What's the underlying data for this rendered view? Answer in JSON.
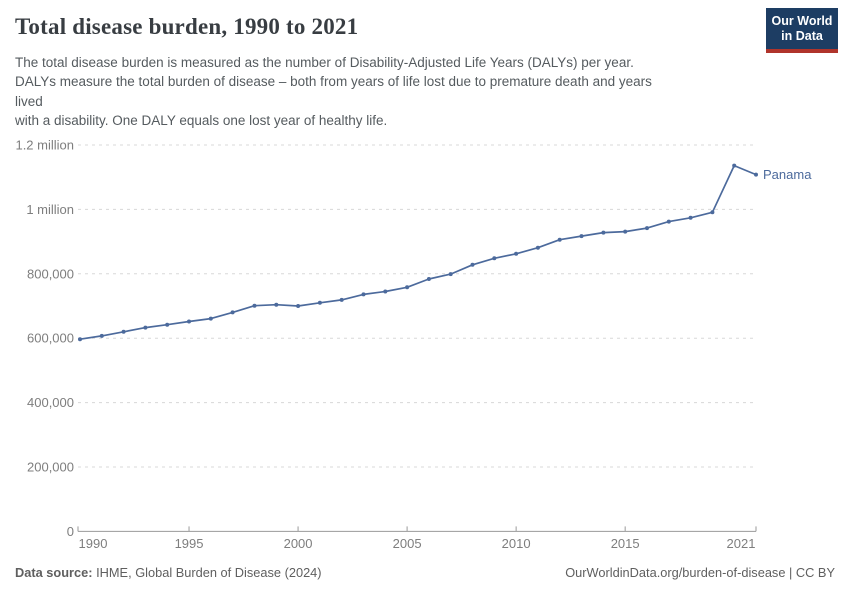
{
  "header": {
    "title": "Total disease burden, 1990 to 2021",
    "subtitle_lines": [
      "The total disease burden is measured as the number of Disability-Adjusted Life Years (DALYs) per year.",
      "DALYs measure the total burden of disease – both from years of life lost due to premature death and years",
      "lived",
      "with a disability. One DALY equals one lost year of healthy life."
    ],
    "logo": {
      "line1": "Our World",
      "line2": "in Data",
      "bg_color": "#1d3d63",
      "bar_color": "#b0342b"
    }
  },
  "chart_data": {
    "type": "line",
    "title": "Total disease burden, 1990 to 2021",
    "xlabel": "",
    "ylabel": "",
    "xlim": [
      1990,
      2021
    ],
    "ylim": [
      0,
      1200000
    ],
    "grid": "horizontal-dashed",
    "legend_position": "end-of-line-label",
    "x_ticks": [
      1990,
      1995,
      2000,
      2005,
      2010,
      2015,
      2021
    ],
    "y_ticks": [
      0,
      200000,
      400000,
      600000,
      800000,
      1000000,
      1200000
    ],
    "y_tick_labels": [
      "0",
      "200,000",
      "400,000",
      "600,000",
      "800,000",
      "1 million",
      "1.2 million"
    ],
    "series": [
      {
        "name": "Panama",
        "color": "#4C6A9C",
        "x": [
          1990,
          1991,
          1992,
          1993,
          1994,
          1995,
          1996,
          1997,
          1998,
          1999,
          2000,
          2001,
          2002,
          2003,
          2004,
          2005,
          2006,
          2007,
          2008,
          2009,
          2010,
          2011,
          2012,
          2013,
          2014,
          2015,
          2016,
          2017,
          2018,
          2019,
          2020,
          2021
        ],
        "values": [
          597000,
          607000,
          620000,
          633000,
          642000,
          652000,
          661000,
          680000,
          701000,
          704000,
          700000,
          710000,
          719000,
          736000,
          745000,
          758000,
          784000,
          799000,
          828000,
          848000,
          862000,
          881000,
          906000,
          917000,
          928000,
          931000,
          942000,
          962000,
          974000,
          991000,
          1136000,
          1108000
        ]
      }
    ],
    "end_label": "Panama"
  },
  "footer": {
    "source_label": "Data source:",
    "source_text": " IHME, Global Burden of Disease (2024)",
    "right_text": "OurWorldinData.org/burden-of-disease | CC BY"
  }
}
